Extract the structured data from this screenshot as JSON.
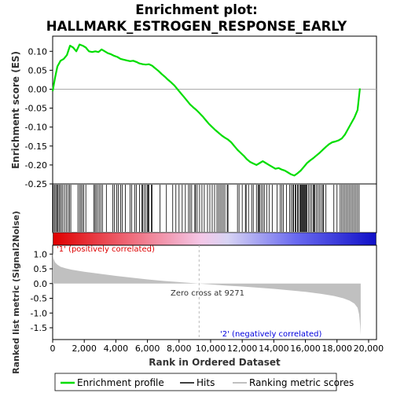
{
  "chart_data": {
    "type": "line",
    "title_line1": "Enrichment plot:",
    "title_line2": "HALLMARK_ESTROGEN_RESPONSE_EARLY",
    "ylabel_top": "Enrichment score (ES)",
    "ylabel_bottom": "Ranked list metric (Signal2Noise)",
    "xlabel": "Rank in Ordered Dataset",
    "xlim": [
      0,
      20500
    ],
    "xticks": [
      0,
      2000,
      4000,
      6000,
      8000,
      10000,
      12000,
      14000,
      16000,
      18000,
      20000
    ],
    "xtick_labels": [
      "0",
      "2,000",
      "4,000",
      "6,000",
      "8,000",
      "10,000",
      "12,000",
      "14,000",
      "16,000",
      "18,000",
      "20,000"
    ],
    "es_ylim": [
      -0.25,
      0.14
    ],
    "es_yticks": [
      0.1,
      0.05,
      0.0,
      -0.05,
      -0.1,
      -0.15,
      -0.2,
      -0.25
    ],
    "es_ytick_labels": [
      "0.10",
      "0.05",
      "0.00",
      "-0.05",
      "-0.10",
      "-0.15",
      "-0.20",
      "-0.25"
    ],
    "metric_ylim": [
      -1.9,
      1.3
    ],
    "metric_yticks": [
      1.0,
      0.5,
      0.0,
      -0.5,
      -1.0,
      -1.5
    ],
    "metric_ytick_labels": [
      "1.0",
      "0.5",
      "0.0",
      "-0.5",
      "-1.0",
      "-1.5"
    ],
    "series": [
      {
        "name": "Enrichment profile",
        "color": "#00dd00",
        "x": [
          0,
          150,
          300,
          500,
          700,
          900,
          1100,
          1300,
          1500,
          1700,
          1900,
          2100,
          2300,
          2500,
          2700,
          2900,
          3100,
          3300,
          3500,
          3700,
          3900,
          4100,
          4300,
          4500,
          4700,
          4900,
          5100,
          5300,
          5500,
          5700,
          5900,
          6100,
          6300,
          6500,
          6700,
          6900,
          7100,
          7300,
          7500,
          7700,
          7900,
          8100,
          8300,
          8500,
          8700,
          8900,
          9100,
          9271,
          9500,
          9700,
          9900,
          10100,
          10300,
          10500,
          10700,
          10900,
          11100,
          11300,
          11500,
          11700,
          11900,
          12100,
          12300,
          12500,
          12700,
          12900,
          13100,
          13300,
          13500,
          13700,
          13900,
          14100,
          14300,
          14500,
          14700,
          14900,
          15100,
          15300,
          15500,
          15700,
          15900,
          16100,
          16300,
          16500,
          16700,
          16900,
          17100,
          17300,
          17500,
          17700,
          17900,
          18100,
          18300,
          18500,
          18700,
          18900,
          19100,
          19300,
          19450
        ],
        "values": [
          -0.005,
          0.03,
          0.06,
          0.075,
          0.08,
          0.09,
          0.115,
          0.11,
          0.1,
          0.118,
          0.115,
          0.11,
          0.1,
          0.098,
          0.1,
          0.098,
          0.105,
          0.1,
          0.095,
          0.092,
          0.088,
          0.085,
          0.08,
          0.078,
          0.076,
          0.074,
          0.075,
          0.072,
          0.068,
          0.066,
          0.065,
          0.066,
          0.062,
          0.055,
          0.048,
          0.04,
          0.033,
          0.025,
          0.018,
          0.01,
          0.0,
          -0.01,
          -0.02,
          -0.03,
          -0.04,
          -0.048,
          -0.055,
          -0.062,
          -0.072,
          -0.082,
          -0.092,
          -0.1,
          -0.108,
          -0.115,
          -0.122,
          -0.128,
          -0.133,
          -0.14,
          -0.15,
          -0.16,
          -0.168,
          -0.176,
          -0.185,
          -0.192,
          -0.196,
          -0.2,
          -0.195,
          -0.19,
          -0.195,
          -0.2,
          -0.205,
          -0.21,
          -0.208,
          -0.212,
          -0.215,
          -0.22,
          -0.225,
          -0.228,
          -0.222,
          -0.215,
          -0.205,
          -0.195,
          -0.188,
          -0.182,
          -0.175,
          -0.168,
          -0.16,
          -0.152,
          -0.145,
          -0.14,
          -0.138,
          -0.135,
          -0.13,
          -0.12,
          -0.105,
          -0.09,
          -0.075,
          -0.055,
          0.002
        ]
      },
      {
        "name": "Hits",
        "color": "#000000",
        "positions": [
          40,
          120,
          200,
          260,
          330,
          400,
          470,
          560,
          650,
          760,
          870,
          980,
          1070,
          1150,
          1600,
          1700,
          1790,
          1880,
          1970,
          2100,
          2600,
          2680,
          2750,
          2850,
          2950,
          3050,
          3150,
          3400,
          3800,
          3900,
          4050,
          4150,
          4300,
          4400,
          4600,
          4900,
          5000,
          5200,
          5300,
          5500,
          5650,
          5700,
          5800,
          5900,
          6000,
          6050,
          6100,
          6250,
          6300,
          6800,
          7200,
          7600,
          7800,
          8000,
          8200,
          8400,
          8600,
          8700,
          8800,
          9000,
          9050,
          9150,
          9300,
          9450,
          9600,
          9800,
          9950,
          10100,
          10250,
          10400,
          10500,
          10600,
          10700,
          10800,
          10900,
          11050,
          11100,
          11700,
          11800,
          12000,
          12200,
          12250,
          12400,
          12600,
          12700,
          12900,
          13000,
          13050,
          13100,
          13200,
          13300,
          13400,
          13550,
          13700,
          13900,
          14200,
          14400,
          14500,
          14600,
          14800,
          15000,
          15100,
          15200,
          15250,
          15350,
          15400,
          15500,
          15550,
          15650,
          15700,
          15750,
          15800,
          15850,
          15900,
          15950,
          16000,
          16050,
          16100,
          16200,
          16300,
          16400,
          16500,
          16550,
          16600,
          16700,
          16800,
          16900,
          17000,
          17100,
          17150,
          17300,
          17800,
          18000,
          18200,
          18300,
          18400,
          18500,
          18600,
          18700,
          18800,
          18900,
          19000,
          19100,
          19200,
          19300,
          19400
        ]
      },
      {
        "name": "Ranking metric scores",
        "color": "#c0c0c0",
        "x": [
          0,
          50,
          150,
          300,
          500,
          800,
          1200,
          2000,
          3000,
          4000,
          5000,
          6000,
          7000,
          8000,
          9000,
          9271,
          10000,
          11000,
          12000,
          13000,
          14000,
          15000,
          16000,
          17000,
          17800,
          18400,
          18800,
          19100,
          19300,
          19400,
          19460,
          19500
        ],
        "values": [
          1.05,
          0.85,
          0.72,
          0.64,
          0.57,
          0.52,
          0.47,
          0.4,
          0.33,
          0.26,
          0.2,
          0.14,
          0.09,
          0.05,
          0.01,
          0.0,
          -0.03,
          -0.07,
          -0.1,
          -0.14,
          -0.18,
          -0.23,
          -0.28,
          -0.35,
          -0.42,
          -0.5,
          -0.58,
          -0.68,
          -0.82,
          -1.05,
          -1.4,
          -1.75
        ]
      }
    ],
    "zero_cross_label": "Zero cross at 9271",
    "zero_cross_x": 9271,
    "pos_label": "'1' (positively correlated)",
    "neg_label": "'2' (negatively correlated)",
    "pos_color": "#dd0000",
    "neg_color": "#0000dd",
    "legend_position": "bottom",
    "legend": [
      "Enrichment profile",
      "Hits",
      "Ranking metric scores"
    ]
  }
}
